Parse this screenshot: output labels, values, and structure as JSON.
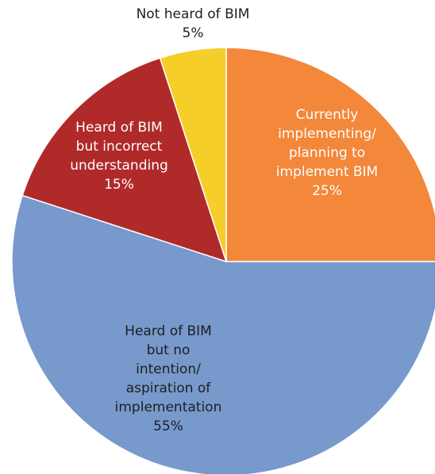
{
  "chart_data": {
    "type": "pie",
    "title": "",
    "start_angle_deg": 0,
    "direction": "clockwise",
    "slices": [
      {
        "label_lines": [
          "Currently",
          "implementing/",
          "planning to",
          "implement BIM"
        ],
        "value_label": "25%",
        "value": 25,
        "color": "#f3873a",
        "text_color": "#ffffff"
      },
      {
        "label_lines": [
          "Heard of BIM",
          "but no",
          "intention/",
          "aspiration of",
          "implementation"
        ],
        "value_label": "55%",
        "value": 55,
        "color": "#7799cc",
        "text_color": "#1f1f1f"
      },
      {
        "label_lines": [
          "Heard of BIM",
          "but incorrect",
          "understanding"
        ],
        "value_label": "15%",
        "value": 15,
        "color": "#b02a2a",
        "text_color": "#ffffff"
      },
      {
        "label_lines": [
          "Not heard of BIM"
        ],
        "value_label": "5%",
        "value": 5,
        "color": "#f5ce2a",
        "text_color": "#1f1f1f"
      }
    ]
  }
}
